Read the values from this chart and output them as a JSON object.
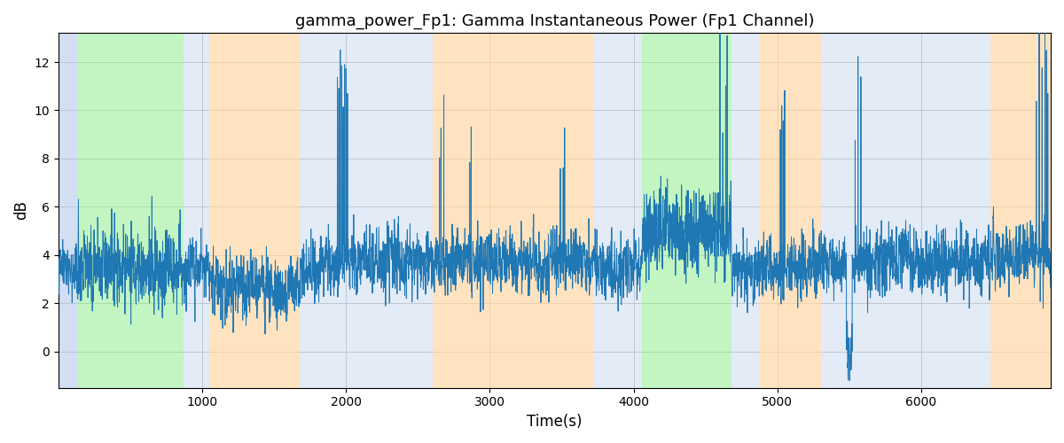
{
  "title": "gamma_power_Fp1: Gamma Instantaneous Power (Fp1 Channel)",
  "xlabel": "Time(s)",
  "ylabel": "dB",
  "xlim": [
    0,
    6900
  ],
  "ylim": [
    -1.5,
    13.2
  ],
  "yticks": [
    0,
    2,
    4,
    6,
    8,
    10,
    12
  ],
  "xticks": [
    1000,
    2000,
    3000,
    4000,
    5000,
    6000
  ],
  "line_color": "#1f77b4",
  "bands": [
    {
      "xmin": 0,
      "xmax": 130,
      "color": "#aec6e8",
      "alpha": 0.55
    },
    {
      "xmin": 130,
      "xmax": 870,
      "color": "#90ee90",
      "alpha": 0.55
    },
    {
      "xmin": 870,
      "xmax": 1050,
      "color": "#aec6e8",
      "alpha": 0.35
    },
    {
      "xmin": 1050,
      "xmax": 1680,
      "color": "#ffd59e",
      "alpha": 0.65
    },
    {
      "xmin": 1680,
      "xmax": 1820,
      "color": "#aec6e8",
      "alpha": 0.35
    },
    {
      "xmin": 1820,
      "xmax": 2480,
      "color": "#aec6e8",
      "alpha": 0.35
    },
    {
      "xmin": 2480,
      "xmax": 2600,
      "color": "#aec6e8",
      "alpha": 0.35
    },
    {
      "xmin": 2600,
      "xmax": 3720,
      "color": "#ffd59e",
      "alpha": 0.65
    },
    {
      "xmin": 3720,
      "xmax": 3870,
      "color": "#aec6e8",
      "alpha": 0.35
    },
    {
      "xmin": 3870,
      "xmax": 4060,
      "color": "#aec6e8",
      "alpha": 0.35
    },
    {
      "xmin": 4060,
      "xmax": 4680,
      "color": "#90ee90",
      "alpha": 0.55
    },
    {
      "xmin": 4680,
      "xmax": 4870,
      "color": "#aec6e8",
      "alpha": 0.35
    },
    {
      "xmin": 4870,
      "xmax": 5310,
      "color": "#ffd59e",
      "alpha": 0.65
    },
    {
      "xmin": 5310,
      "xmax": 5450,
      "color": "#aec6e8",
      "alpha": 0.35
    },
    {
      "xmin": 5450,
      "xmax": 6310,
      "color": "#aec6e8",
      "alpha": 0.35
    },
    {
      "xmin": 6310,
      "xmax": 6480,
      "color": "#aec6e8",
      "alpha": 0.35
    },
    {
      "xmin": 6480,
      "xmax": 6900,
      "color": "#ffd59e",
      "alpha": 0.65
    }
  ],
  "title_fontsize": 13,
  "axis_fontsize": 12,
  "figsize": [
    12,
    5
  ],
  "dpi": 100,
  "seed": 2023,
  "n_samples": 6900
}
